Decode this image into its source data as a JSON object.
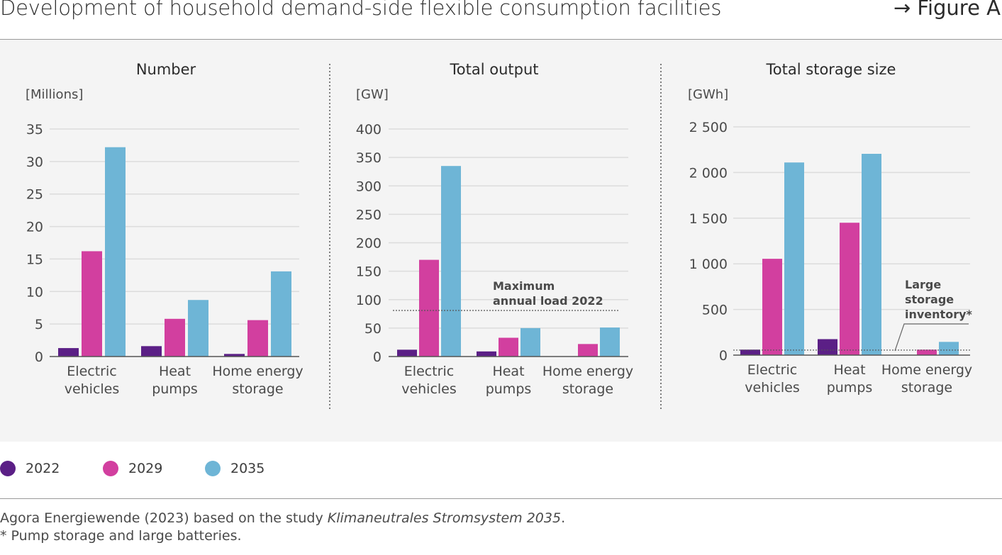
{
  "header": {
    "title": "Development of household demand-side flexible consumption facilities",
    "figure_ref": "→ Figure A"
  },
  "legend": [
    {
      "label": "2022",
      "color": "#5b1f86"
    },
    {
      "label": "2029",
      "color": "#d23f9f"
    },
    {
      "label": "2035",
      "color": "#6eb5d6"
    }
  ],
  "colors": {
    "2022": "#5b1f86",
    "2029": "#d23f9f",
    "2035": "#6eb5d6",
    "grid": "#dcdcdc",
    "axis": "#555555"
  },
  "footer": {
    "source_prefix": "Agora Energiewende (2023) based on the study ",
    "source_study": "Klimaneutrales Stromsystem 2035",
    "source_suffix": ".",
    "footnote": "* Pump storage and large batteries."
  },
  "chart_data": [
    {
      "type": "bar",
      "title": "Number",
      "ylabel": "[Millions]",
      "ylim": [
        0,
        35
      ],
      "yticks": [
        0,
        5,
        10,
        15,
        20,
        25,
        30,
        35
      ],
      "ytick_labels": [
        "0",
        "5",
        "10",
        "15",
        "20",
        "25",
        "30",
        "35"
      ],
      "categories": [
        [
          "Electric",
          "vehicles"
        ],
        [
          "Heat",
          "pumps"
        ],
        [
          "Home energy",
          "storage"
        ]
      ],
      "series": [
        {
          "name": "2022",
          "values": [
            1.3,
            1.6,
            0.4
          ]
        },
        {
          "name": "2029",
          "values": [
            16.2,
            5.8,
            5.6
          ]
        },
        {
          "name": "2035",
          "values": [
            32.2,
            8.7,
            13.1
          ]
        }
      ]
    },
    {
      "type": "bar",
      "title": "Total output",
      "ylabel": "[GW]",
      "ylim": [
        0,
        400
      ],
      "yticks": [
        0,
        50,
        100,
        150,
        200,
        250,
        300,
        350,
        400
      ],
      "ytick_labels": [
        "0",
        "50",
        "100",
        "150",
        "200",
        "250",
        "300",
        "350",
        "400"
      ],
      "categories": [
        [
          "Electric",
          "vehicles"
        ],
        [
          "Heat",
          "pumps"
        ],
        [
          "Home energy",
          "storage"
        ]
      ],
      "series": [
        {
          "name": "2022",
          "values": [
            12,
            9,
            0
          ]
        },
        {
          "name": "2029",
          "values": [
            170,
            33,
            22
          ]
        },
        {
          "name": "2035",
          "values": [
            335,
            50,
            51
          ]
        }
      ],
      "reference_line": {
        "value": 81,
        "label": [
          "Maximum",
          "annual load 2022"
        ]
      }
    },
    {
      "type": "bar",
      "title": "Total storage size",
      "ylabel": "[GWh]",
      "ylim": [
        0,
        2500
      ],
      "yticks": [
        0,
        500,
        1000,
        1500,
        2000,
        2500
      ],
      "ytick_labels": [
        "0",
        "500",
        "1 000",
        "1 500",
        "2 000",
        "2 500"
      ],
      "categories": [
        [
          "Electric",
          "vehicles"
        ],
        [
          "Heat",
          "pumps"
        ],
        [
          "Home energy",
          "storage"
        ]
      ],
      "series": [
        {
          "name": "2022",
          "values": [
            60,
            175,
            0
          ]
        },
        {
          "name": "2029",
          "values": [
            1055,
            1450,
            60
          ]
        },
        {
          "name": "2035",
          "values": [
            2110,
            2205,
            145
          ]
        }
      ],
      "reference_line": {
        "value": 55,
        "label": [
          "Large",
          "storage",
          "inventory*"
        ]
      }
    }
  ]
}
